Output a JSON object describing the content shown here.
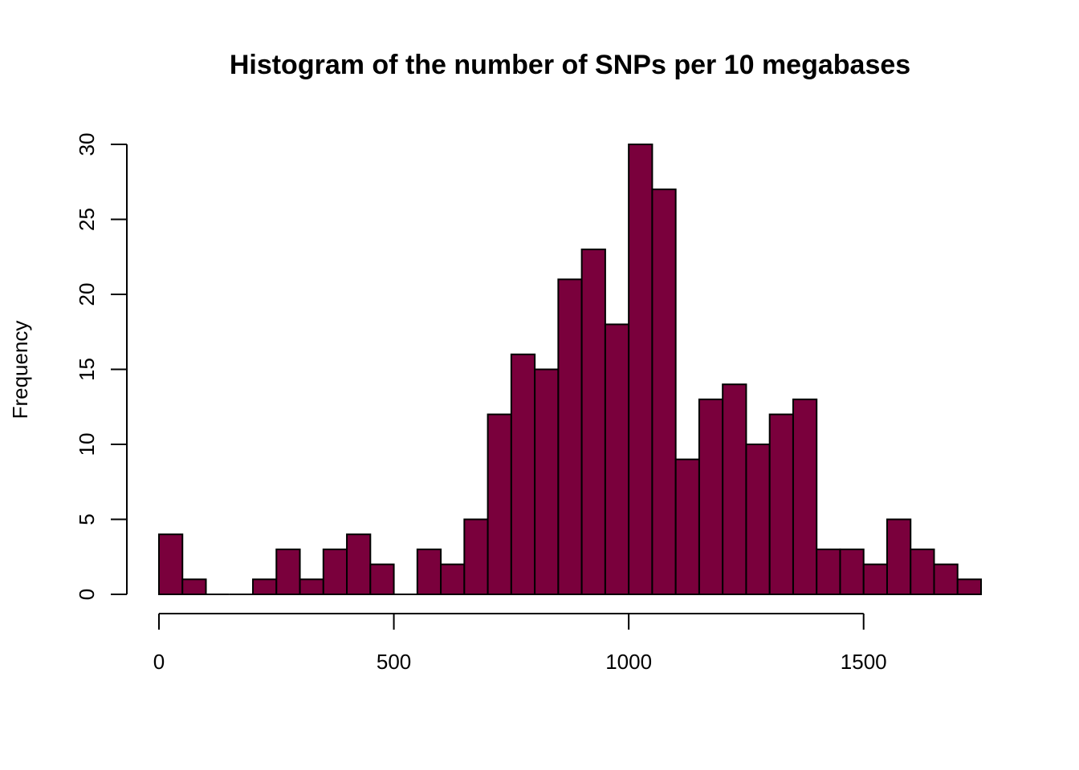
{
  "chart_data": {
    "type": "bar",
    "title": "Histogram of the number of SNPs per 10 megabases",
    "xlabel": "",
    "ylabel": "Frequency",
    "bin_width": 50,
    "bin_start": 0,
    "values": [
      4,
      1,
      0,
      0,
      1,
      3,
      1,
      3,
      4,
      2,
      0,
      3,
      2,
      5,
      12,
      16,
      15,
      21,
      23,
      18,
      30,
      27,
      9,
      13,
      14,
      10,
      12,
      13,
      3,
      3,
      2,
      5,
      3,
      2,
      1
    ],
    "xlim": [
      0,
      1750
    ],
    "ylim": [
      0,
      30
    ],
    "x_ticks": [
      0,
      500,
      1000,
      1500
    ],
    "y_ticks": [
      0,
      5,
      10,
      15,
      20,
      25,
      30
    ],
    "bar_color": "#7a003c",
    "grid": false,
    "legend": "none"
  }
}
